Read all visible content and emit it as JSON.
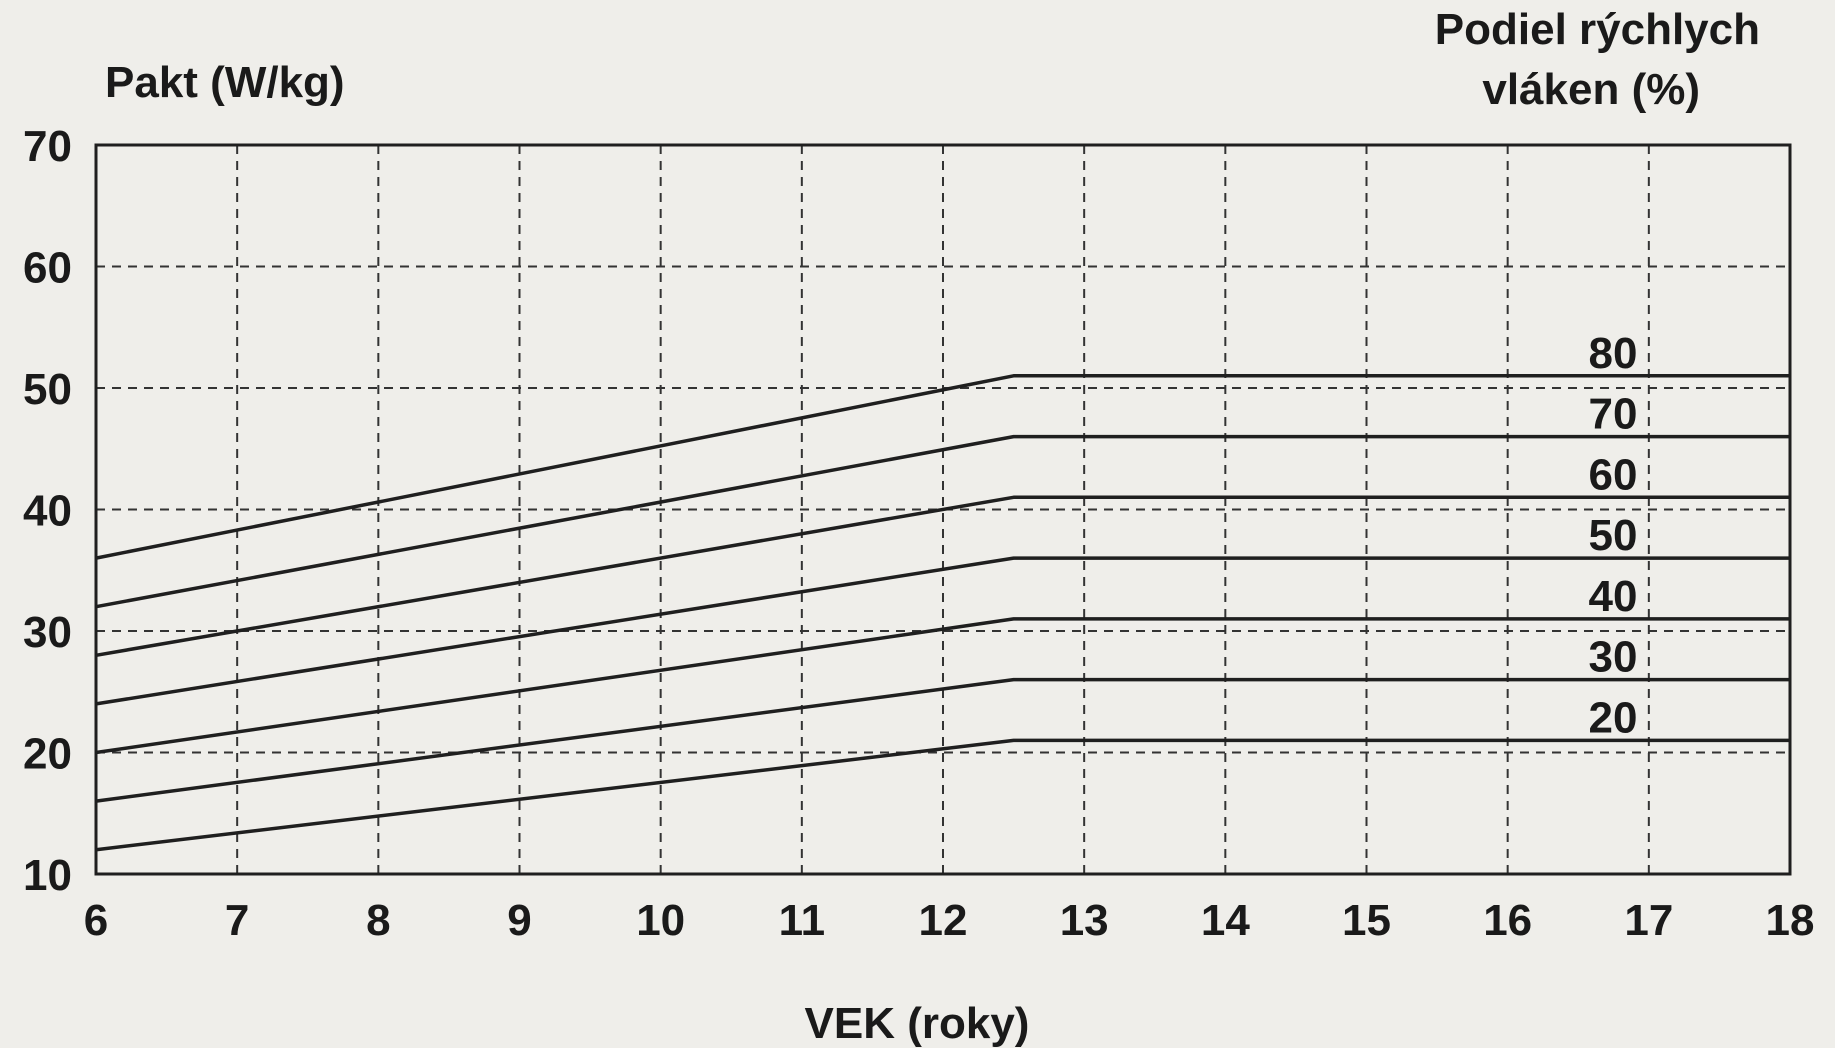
{
  "chart_data": {
    "type": "line",
    "ylabel": "Pakt (W/kg)",
    "xlabel": "VEK (roky)",
    "legend_title": [
      "Podiel rýchlych",
      "vláken (%)"
    ],
    "xlim": [
      6,
      18
    ],
    "ylim": [
      10,
      70
    ],
    "x_ticks": [
      "6",
      "7",
      "8",
      "9",
      "10",
      "11",
      "12",
      "13",
      "14",
      "15",
      "16",
      "17",
      "18"
    ],
    "y_ticks": [
      "10",
      "20",
      "30",
      "40",
      "50",
      "60",
      "70"
    ],
    "grid": "dashed",
    "series_labels_position": "right, above each line",
    "series": [
      {
        "name": "80",
        "points": [
          [
            6,
            36
          ],
          [
            12.5,
            51
          ],
          [
            18,
            51
          ]
        ]
      },
      {
        "name": "70",
        "points": [
          [
            6,
            32
          ],
          [
            12.5,
            46
          ],
          [
            18,
            46
          ]
        ]
      },
      {
        "name": "60",
        "points": [
          [
            6,
            28
          ],
          [
            12.5,
            41
          ],
          [
            18,
            41
          ]
        ]
      },
      {
        "name": "50",
        "points": [
          [
            6,
            24
          ],
          [
            12.5,
            36
          ],
          [
            18,
            36
          ]
        ]
      },
      {
        "name": "40",
        "points": [
          [
            6,
            20
          ],
          [
            12.5,
            31
          ],
          [
            18,
            31
          ]
        ]
      },
      {
        "name": "30",
        "points": [
          [
            6,
            16
          ],
          [
            12.5,
            26
          ],
          [
            18,
            26
          ]
        ]
      },
      {
        "name": "20",
        "points": [
          [
            6,
            12
          ],
          [
            12.5,
            21
          ],
          [
            18,
            21
          ]
        ]
      }
    ],
    "colors": {
      "line": "#1f1f1f",
      "grid": "#333333",
      "background": "#efeeea"
    }
  }
}
